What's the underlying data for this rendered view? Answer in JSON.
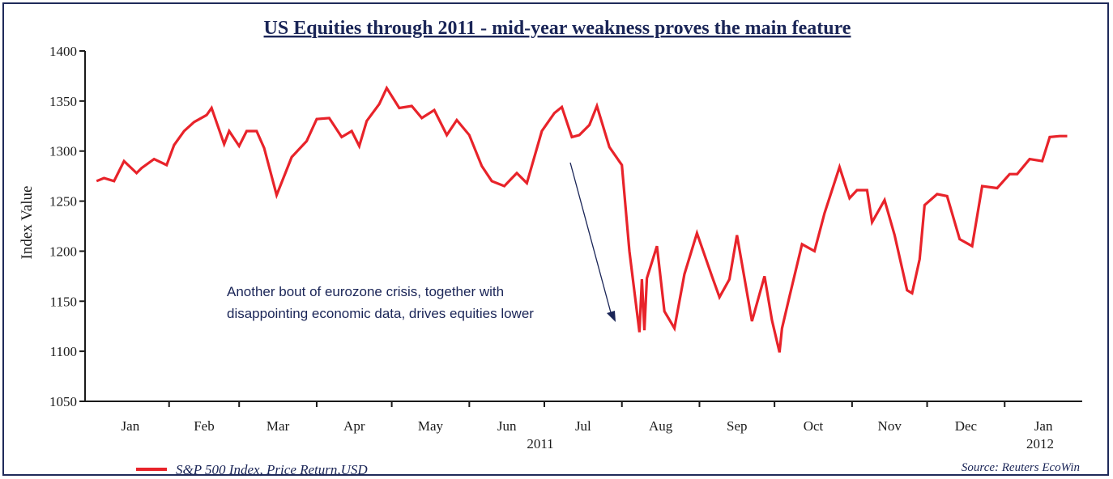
{
  "chart_data": {
    "type": "line",
    "title": "US Equities through 2011 - mid-year weakness proves the main feature",
    "ylabel": "Index Value",
    "xlabel": "",
    "ylim": [
      1050,
      1400
    ],
    "yticks": [
      1050,
      1100,
      1150,
      1200,
      1250,
      1300,
      1350,
      1400
    ],
    "grid": false,
    "legend_position": "bottom-left",
    "months": [
      "Jan",
      "Feb",
      "Mar",
      "Apr",
      "May",
      "Jun",
      "Jul",
      "Aug",
      "Sep",
      "Oct",
      "Nov",
      "Dec",
      "Jan"
    ],
    "year_labels": [
      "2011",
      "2012"
    ],
    "series": [
      {
        "name": "S&P 500 Index, Price Return,USD",
        "color": "#e8232a",
        "x": [
          "2011-01-03",
          "2011-01-06",
          "2011-01-10",
          "2011-01-14",
          "2011-01-19",
          "2011-01-21",
          "2011-01-26",
          "2011-01-31",
          "2011-02-03",
          "2011-02-07",
          "2011-02-11",
          "2011-02-16",
          "2011-02-18",
          "2011-02-23",
          "2011-02-25",
          "2011-03-01",
          "2011-03-04",
          "2011-03-08",
          "2011-03-11",
          "2011-03-16",
          "2011-03-22",
          "2011-03-28",
          "2011-04-01",
          "2011-04-06",
          "2011-04-11",
          "2011-04-15",
          "2011-04-18",
          "2011-04-21",
          "2011-04-26",
          "2011-04-29",
          "2011-05-04",
          "2011-05-09",
          "2011-05-13",
          "2011-05-18",
          "2011-05-23",
          "2011-05-27",
          "2011-06-01",
          "2011-06-06",
          "2011-06-10",
          "2011-06-15",
          "2011-06-20",
          "2011-06-24",
          "2011-06-30",
          "2011-07-05",
          "2011-07-08",
          "2011-07-12",
          "2011-07-15",
          "2011-07-19",
          "2011-07-22",
          "2011-07-27",
          "2011-08-01",
          "2011-08-04",
          "2011-08-08",
          "2011-08-09",
          "2011-08-10",
          "2011-08-11",
          "2011-08-15",
          "2011-08-18",
          "2011-08-22",
          "2011-08-26",
          "2011-08-31",
          "2011-09-06",
          "2011-09-09",
          "2011-09-13",
          "2011-09-16",
          "2011-09-22",
          "2011-09-27",
          "2011-09-30",
          "2011-10-03",
          "2011-10-04",
          "2011-10-07",
          "2011-10-12",
          "2011-10-17",
          "2011-10-21",
          "2011-10-27",
          "2011-10-31",
          "2011-11-03",
          "2011-11-07",
          "2011-11-09",
          "2011-11-14",
          "2011-11-18",
          "2011-11-23",
          "2011-11-25",
          "2011-11-28",
          "2011-11-30",
          "2011-12-05",
          "2011-12-09",
          "2011-12-14",
          "2011-12-19",
          "2011-12-23",
          "2011-12-29",
          "2012-01-03",
          "2012-01-06",
          "2012-01-11",
          "2012-01-16",
          "2012-01-19",
          "2012-01-23",
          "2012-01-26"
        ],
        "y": [
          1270,
          1273,
          1270,
          1290,
          1278,
          1283,
          1292,
          1286,
          1306,
          1320,
          1329,
          1336,
          1343,
          1307,
          1320,
          1305,
          1320,
          1320,
          1303,
          1256,
          1294,
          1310,
          1332,
          1333,
          1314,
          1320,
          1305,
          1330,
          1347,
          1363,
          1343,
          1345,
          1333,
          1341,
          1316,
          1331,
          1316,
          1285,
          1270,
          1265,
          1278,
          1268,
          1320,
          1338,
          1344,
          1314,
          1316,
          1326,
          1345,
          1304,
          1286,
          1200,
          1119,
          1172,
          1121,
          1173,
          1205,
          1140,
          1123,
          1177,
          1218,
          1175,
          1154,
          1172,
          1216,
          1130,
          1175,
          1131,
          1099,
          1123,
          1155,
          1207,
          1200,
          1238,
          1284,
          1253,
          1261,
          1261,
          1229,
          1251,
          1216,
          1161,
          1158,
          1192,
          1246,
          1257,
          1255,
          1212,
          1205,
          1265,
          1263,
          1277,
          1277,
          1292,
          1290,
          1314,
          1315,
          1315
        ]
      }
    ],
    "annotation": {
      "line1": "Another bout of eurozone crisis, together with",
      "line2": "disappointing economic data, drives equities lower"
    },
    "source": "Source: Reuters EcoWin",
    "legend_label": "S&P 500 Index, Price Return,USD"
  }
}
